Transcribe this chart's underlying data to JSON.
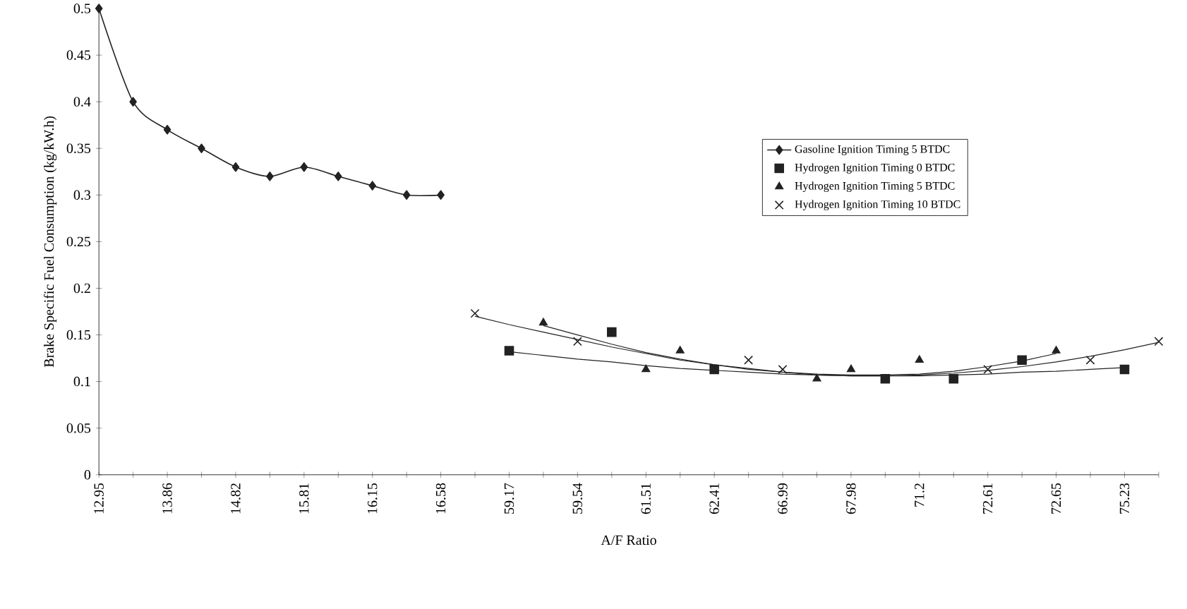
{
  "chart_data": {
    "type": "line",
    "xlabel": "A/F Ratio",
    "ylabel": "Brake Specific Fuel Consumption (kg/kW.h)",
    "categories": [
      "12.95",
      null,
      "13.86",
      null,
      "14.82",
      null,
      "15.81",
      null,
      "16.15",
      null,
      "16.58",
      null,
      "59.17",
      null,
      "59.54",
      null,
      "61.51",
      null,
      "62.41",
      null,
      "66.99",
      null,
      "67.98",
      null,
      "71.2",
      null,
      "72.61",
      null,
      "72.65",
      null,
      "75.23",
      null
    ],
    "ylim": [
      0,
      0.5
    ],
    "yticks": [
      0,
      0.05,
      0.1,
      0.15,
      0.2,
      0.25,
      0.3,
      0.35,
      0.4,
      0.45,
      0.5
    ],
    "grid": false,
    "legend": "right",
    "series": [
      {
        "name": "Gasoline Ignition Timing 5  BTDC",
        "marker": "diamond",
        "color": "#222222",
        "values": [
          0.5,
          0.4,
          0.37,
          0.35,
          0.33,
          0.32,
          0.33,
          0.32,
          0.31,
          0.3,
          0.3,
          null,
          null,
          null,
          null,
          null,
          null,
          null,
          null,
          null,
          null,
          null,
          null,
          null,
          null,
          null,
          null,
          null,
          null,
          null,
          null,
          null
        ]
      },
      {
        "name": "Hydrogen Ignition Timing 0  BTDC",
        "type": "scatter",
        "marker": "square",
        "color": "#222222",
        "values": [
          null,
          null,
          null,
          null,
          null,
          null,
          null,
          null,
          null,
          null,
          null,
          null,
          0.133,
          null,
          null,
          0.153,
          null,
          null,
          0.113,
          null,
          null,
          null,
          null,
          0.103,
          null,
          0.103,
          null,
          0.123,
          null,
          null,
          0.113,
          null
        ]
      },
      {
        "name": "Hydrogen Ignition Timing 5  BTDC",
        "type": "scatter",
        "marker": "triangle",
        "color": "#222222",
        "values": [
          null,
          null,
          null,
          null,
          null,
          null,
          null,
          null,
          null,
          null,
          null,
          null,
          null,
          0.163,
          null,
          null,
          0.113,
          0.133,
          null,
          null,
          null,
          0.103,
          0.113,
          null,
          0.123,
          null,
          null,
          null,
          0.133,
          null,
          null,
          null
        ]
      },
      {
        "name": "Hydrogen Ignition Timing 10  BTDC",
        "type": "scatter",
        "marker": "cross",
        "color": "#222222",
        "values": [
          null,
          null,
          null,
          null,
          null,
          null,
          null,
          null,
          null,
          null,
          null,
          0.173,
          null,
          null,
          0.143,
          null,
          null,
          null,
          null,
          0.123,
          0.113,
          null,
          null,
          null,
          null,
          null,
          0.113,
          null,
          null,
          0.123,
          null,
          0.143
        ]
      },
      {
        "type": "line",
        "marker": "none",
        "color": "#222222",
        "values": [
          null,
          null,
          null,
          null,
          null,
          null,
          null,
          null,
          null,
          null,
          null,
          null,
          0.132,
          0.128,
          0.124,
          0.121,
          0.117,
          0.114,
          0.112,
          0.11,
          0.108,
          0.107,
          0.106,
          0.106,
          0.106,
          0.107,
          0.108,
          0.11,
          0.111,
          0.113,
          0.115,
          null
        ]
      },
      {
        "type": "line",
        "marker": "none",
        "color": "#222222",
        "values": [
          null,
          null,
          null,
          null,
          null,
          null,
          null,
          null,
          null,
          null,
          null,
          null,
          null,
          0.16,
          0.15,
          0.14,
          0.131,
          0.124,
          0.118,
          0.113,
          0.11,
          0.108,
          0.107,
          0.107,
          0.108,
          0.111,
          0.116,
          0.122,
          0.13,
          null,
          null,
          null
        ]
      },
      {
        "type": "line",
        "marker": "none",
        "color": "#222222",
        "values": [
          null,
          null,
          null,
          null,
          null,
          null,
          null,
          null,
          null,
          null,
          null,
          0.17,
          0.161,
          0.153,
          0.145,
          0.137,
          0.13,
          0.123,
          0.118,
          0.114,
          0.11,
          0.107,
          0.106,
          0.106,
          0.107,
          0.109,
          0.112,
          0.116,
          0.121,
          0.127,
          0.134,
          0.142
        ]
      }
    ]
  }
}
